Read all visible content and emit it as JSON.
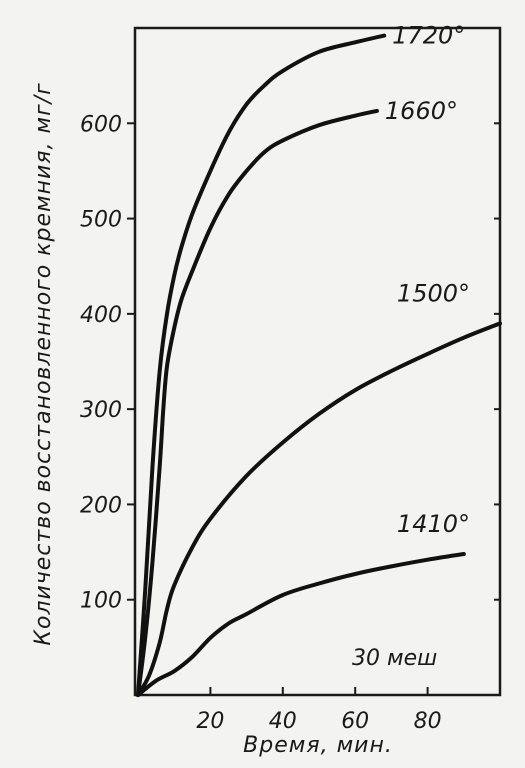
{
  "chart_data": {
    "type": "line",
    "title": "",
    "xlabel": "Время, мин.",
    "ylabel": "Количество восстановленного кремния, мг/г",
    "xlim": [
      0,
      100
    ],
    "ylim": [
      0,
      700
    ],
    "xticks": [
      20,
      40,
      60,
      80
    ],
    "yticks": [
      100,
      200,
      300,
      400,
      500,
      600
    ],
    "grid": false,
    "annotation": "30 меш",
    "series": [
      {
        "name": "1720°",
        "x": [
          0,
          2,
          4,
          6,
          8,
          10,
          12,
          15,
          20,
          25,
          30,
          35,
          40,
          50,
          60,
          68
        ],
        "y": [
          0,
          110,
          240,
          340,
          400,
          440,
          470,
          505,
          550,
          590,
          620,
          640,
          655,
          675,
          685,
          692
        ]
      },
      {
        "name": "1660°",
        "x": [
          0,
          2,
          4,
          6,
          7,
          8,
          10,
          12,
          15,
          20,
          25,
          30,
          35,
          40,
          50,
          60,
          66
        ],
        "y": [
          0,
          60,
          140,
          240,
          300,
          345,
          385,
          415,
          445,
          490,
          525,
          550,
          570,
          582,
          598,
          608,
          613
        ]
      },
      {
        "name": "1500°",
        "x": [
          0,
          3,
          6,
          8,
          10,
          15,
          20,
          30,
          40,
          50,
          60,
          70,
          80,
          90,
          100
        ],
        "y": [
          0,
          20,
          55,
          90,
          115,
          155,
          185,
          230,
          265,
          295,
          320,
          340,
          358,
          375,
          390
        ]
      },
      {
        "name": "1410°",
        "x": [
          0,
          5,
          10,
          15,
          20,
          25,
          30,
          40,
          50,
          60,
          70,
          80,
          90
        ],
        "y": [
          0,
          15,
          25,
          40,
          60,
          75,
          85,
          105,
          117,
          127,
          135,
          142,
          148
        ]
      }
    ]
  }
}
